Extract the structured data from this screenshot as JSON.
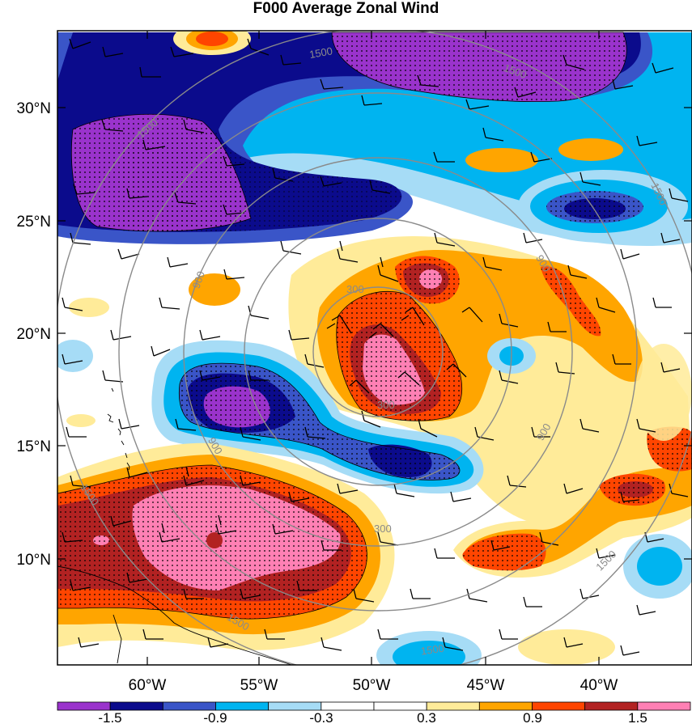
{
  "title": "F000 Average Zonal Wind",
  "x_axis": {
    "ticks": [
      "60°W",
      "55°W",
      "50°W",
      "45°W",
      "40°W"
    ]
  },
  "y_axis": {
    "ticks": [
      "30°N",
      "25°N",
      "20°N",
      "15°N",
      "10°N"
    ]
  },
  "colorbar": {
    "labels": [
      "-1.5",
      "-0.9",
      "-0.3",
      "0.3",
      "0.9",
      "1.5"
    ],
    "colors": [
      "#9a33cc",
      "#0b0b8c",
      "#3a55c8",
      "#00b4f0",
      "#a6dcf6",
      "#ffffff",
      "#ffffff",
      "#ffeb99",
      "#ffa500",
      "#ff4500",
      "#b22222",
      "#ff80b4"
    ]
  },
  "ring_labels": {
    "inner": "300",
    "middle": "900",
    "outer": "1500"
  },
  "map": {
    "lon_range": [
      -63,
      -36
    ],
    "lat_range": [
      5.5,
      33.5
    ],
    "field": "average zonal wind (shaded), wind barbs, range rings",
    "range_ring_color": "#8a8a8a"
  }
}
